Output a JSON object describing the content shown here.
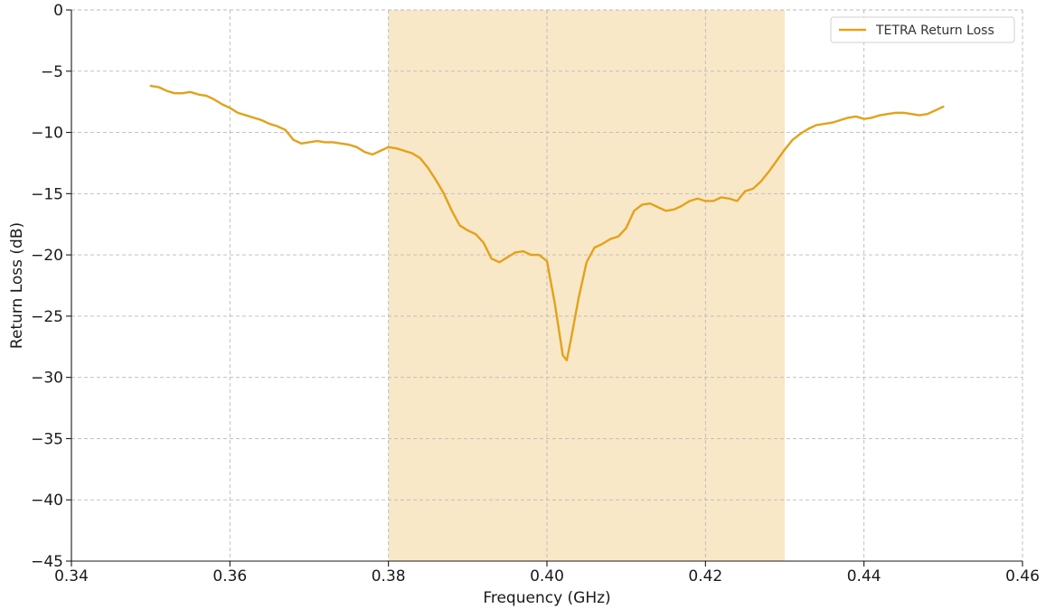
{
  "chart_data": {
    "type": "line",
    "title": "",
    "xlabel": "Frequency (GHz)",
    "ylabel": "Return Loss (dB)",
    "xlim": [
      0.34,
      0.46
    ],
    "ylim": [
      -45,
      0
    ],
    "x_ticks": [
      0.34,
      0.36,
      0.38,
      0.4,
      0.42,
      0.44,
      0.46
    ],
    "x_tick_labels": [
      "0.34",
      "0.36",
      "0.38",
      "0.40",
      "0.42",
      "0.44",
      "0.46"
    ],
    "y_ticks": [
      0,
      -5,
      -10,
      -15,
      -20,
      -25,
      -30,
      -35,
      -40,
      -45
    ],
    "y_tick_labels": [
      "0",
      "−5",
      "−10",
      "−15",
      "−20",
      "−25",
      "−30",
      "−35",
      "−40",
      "−45"
    ],
    "grid": true,
    "legend_position": "top-right",
    "highlight_band": {
      "x_start": 0.38,
      "x_end": 0.43,
      "color": "#f8e8c8"
    },
    "series": [
      {
        "name": "TETRA Return Loss",
        "color": "#e3a21a",
        "x": [
          0.35,
          0.351,
          0.352,
          0.353,
          0.354,
          0.355,
          0.356,
          0.357,
          0.358,
          0.359,
          0.36,
          0.361,
          0.362,
          0.363,
          0.364,
          0.365,
          0.366,
          0.367,
          0.368,
          0.369,
          0.37,
          0.371,
          0.372,
          0.373,
          0.374,
          0.375,
          0.376,
          0.377,
          0.378,
          0.379,
          0.38,
          0.381,
          0.382,
          0.383,
          0.384,
          0.385,
          0.386,
          0.387,
          0.388,
          0.389,
          0.39,
          0.391,
          0.392,
          0.393,
          0.394,
          0.395,
          0.396,
          0.397,
          0.398,
          0.399,
          0.4,
          0.401,
          0.402,
          0.4025,
          0.403,
          0.404,
          0.405,
          0.406,
          0.407,
          0.408,
          0.409,
          0.41,
          0.411,
          0.412,
          0.413,
          0.414,
          0.415,
          0.416,
          0.417,
          0.418,
          0.419,
          0.42,
          0.421,
          0.422,
          0.423,
          0.424,
          0.425,
          0.426,
          0.427,
          0.428,
          0.429,
          0.43,
          0.431,
          0.432,
          0.433,
          0.434,
          0.435,
          0.436,
          0.437,
          0.438,
          0.439,
          0.44,
          0.441,
          0.442,
          0.443,
          0.444,
          0.445,
          0.446,
          0.447,
          0.448,
          0.449,
          0.45
        ],
        "y": [
          -6.2,
          -6.3,
          -6.6,
          -6.8,
          -6.8,
          -6.7,
          -6.9,
          -7.0,
          -7.3,
          -7.7,
          -8.0,
          -8.4,
          -8.6,
          -8.8,
          -9.0,
          -9.3,
          -9.5,
          -9.8,
          -10.6,
          -10.9,
          -10.8,
          -10.7,
          -10.8,
          -10.8,
          -10.9,
          -11.0,
          -11.2,
          -11.6,
          -11.8,
          -11.5,
          -11.2,
          -11.3,
          -11.5,
          -11.7,
          -12.1,
          -12.9,
          -13.9,
          -15.0,
          -16.4,
          -17.6,
          -18.0,
          -18.3,
          -19.0,
          -20.3,
          -20.6,
          -20.2,
          -19.8,
          -19.7,
          -20.0,
          -20.0,
          -20.5,
          -24.0,
          -28.2,
          -28.6,
          -27.0,
          -23.5,
          -20.6,
          -19.4,
          -19.1,
          -18.7,
          -18.5,
          -17.8,
          -16.4,
          -15.9,
          -15.8,
          -16.1,
          -16.4,
          -16.3,
          -16.0,
          -15.6,
          -15.4,
          -15.6,
          -15.6,
          -15.3,
          -15.4,
          -15.6,
          -14.8,
          -14.6,
          -14.0,
          -13.2,
          -12.3,
          -11.4,
          -10.6,
          -10.1,
          -9.7,
          -9.4,
          -9.3,
          -9.2,
          -9.0,
          -8.8,
          -8.7,
          -8.9,
          -8.8,
          -8.6,
          -8.5,
          -8.4,
          -8.4,
          -8.5,
          -8.6,
          -8.5,
          -8.2,
          -7.9
        ]
      }
    ]
  }
}
